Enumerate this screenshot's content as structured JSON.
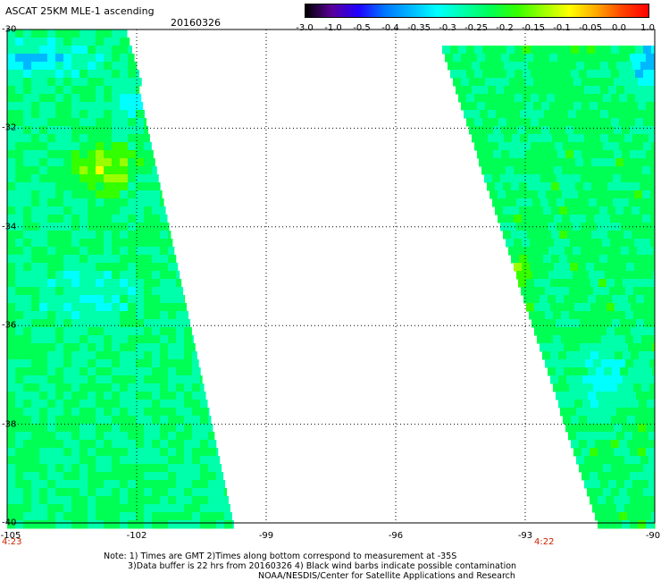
{
  "title": "ASCAT 25KM MLE-1 ascending",
  "date": "20160326",
  "colorbar": {
    "labels": [
      "-3.0",
      "-1.0",
      "-0.5",
      "-0.4",
      "-0.35",
      "-0.3",
      "-0.25",
      "-0.2",
      "-0.15",
      "-0.1",
      "-0.05",
      "0.0",
      "1.0"
    ],
    "colors": [
      "#000000",
      "#5a0099",
      "#2200ff",
      "#0077ff",
      "#00b8ff",
      "#00ffff",
      "#00ffaa",
      "#00ff55",
      "#33ff00",
      "#99ff00",
      "#ffff00",
      "#ffaa00",
      "#ff4400",
      "#ff0000"
    ]
  },
  "map": {
    "lat_labels": [
      "-30",
      "-32",
      "-34",
      "-36",
      "-38",
      "-40"
    ],
    "lon_labels": [
      "-105",
      "-102",
      "-99",
      "-96",
      "-93",
      "-90"
    ],
    "times": {
      "left": "4:23",
      "right": "4:22"
    }
  },
  "notes": {
    "line1": "Note: 1) Times are GMT 2)Times along bottom correspond to measurement at -35S",
    "line2": "3)Data buffer is 22 hrs from 20160326 4) Black wind barbs indicate possible contamination",
    "line3": "NOAA/NESDIS/Center for Satellite Applications and Research"
  }
}
